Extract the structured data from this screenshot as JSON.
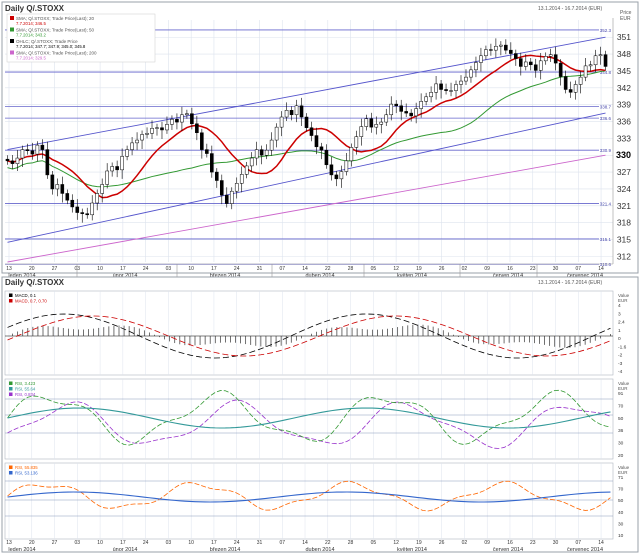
{
  "main": {
    "title": "Daily Q/.STOXX",
    "date_range": "13.1.2014 - 16.7.2014 (EUR)",
    "y_axis_title": "Price\nEUR",
    "legend": [
      {
        "text": "SMA; Q/.STOXX; Trade Price(Last); 20",
        "sub": "7.7.2014; 346.5",
        "color": "#cc0000"
      },
      {
        "text": "SMA; Q/.STOXX; Trade Price(Last); 50",
        "sub": "7.7.2014; 343.2",
        "color": "#339933"
      },
      {
        "text": "OHLC; Q/.STOXX; Trade Price",
        "sub": "7.7.2014; 347.7; 347.9; 345.0; 345.8",
        "color": "#000000"
      },
      {
        "text": "SMA; Q/.STOXX; Trade Price(Last); 200",
        "sub": "7.7.2014; 329.5",
        "color": "#cc66cc"
      }
    ],
    "price_level_labels": [
      "352.3",
      "344.8",
      "338.7",
      "336.6",
      "330.9",
      "321.4",
      "315.1",
      "310.6"
    ],
    "y_ticks": [
      351,
      348,
      345,
      342,
      339,
      336,
      333,
      330,
      327,
      324,
      321,
      318,
      315,
      312
    ],
    "x_day_ticks": [
      "13",
      "20",
      "27",
      "03",
      "10",
      "17",
      "24",
      "03",
      "10",
      "17",
      "24",
      "31",
      "07",
      "14",
      "22",
      "28",
      "05",
      "12",
      "19",
      "26",
      "02",
      "09",
      "16",
      "23",
      "30",
      "07",
      "14"
    ],
    "months": [
      "leden 2014",
      "únor 2014",
      "březen 2014",
      "duben 2014",
      "květen 2014",
      "červen 2014",
      "červenec 2014"
    ]
  },
  "sub": {
    "title": "Daily Q/.STOXX",
    "date_range": "13.1.2014 - 16.7.2014 (EUR)",
    "macd": {
      "legend": [
        {
          "text": "MACD, 0.1",
          "color": "#000000"
        },
        {
          "text": "MACD, 0.7, 0.70",
          "color": "#cc0000"
        }
      ],
      "y_title": "Value\nEUR",
      "y_ticks": [
        "4",
        "3",
        "2.4",
        "1",
        "0",
        "-1.6",
        "-2",
        "-3",
        "-4"
      ]
    },
    "rsi1": {
      "legend": [
        {
          "text": "RSI, 3.423",
          "color": "#339933"
        },
        {
          "text": "RSI, 55.64",
          "color": "#339999"
        },
        {
          "text": "RSI, 0.834",
          "color": "#9933cc"
        }
      ],
      "y_title": "Value\nEUR",
      "y_ticks": [
        "91",
        "70",
        "50",
        "36",
        "30",
        "20"
      ]
    },
    "rsi2": {
      "legend": [
        {
          "text": "RSI, 55.835",
          "color": "#ff6600"
        },
        {
          "text": "RSI, 53.136",
          "color": "#3366cc"
        }
      ],
      "y_title": "Value\nEUR",
      "y_ticks": [
        "71",
        "70",
        "50",
        "40",
        "30",
        "10"
      ]
    },
    "months": [
      "leden 2014",
      "únor 2014",
      "březen 2014",
      "duben 2014",
      "květen 2014",
      "červen 2014",
      "červenec 2014"
    ]
  },
  "colors": {
    "grid": "#dde3ee",
    "channel": "#5555cc",
    "level": "#6666cc",
    "candle_up": "#ffffff",
    "candle_down": "#000000",
    "sma20": "#cc0000",
    "sma50": "#339933",
    "sma200": "#cc66cc"
  },
  "chart_data": {
    "type": "candlestick",
    "title": "Daily Q/.STOXX",
    "ylim": [
      311,
      353
    ],
    "x_range": [
      "13.1.2014",
      "16.7.2014"
    ],
    "closes": [
      329.0,
      328.5,
      329.5,
      331.0,
      330.8,
      330.2,
      331.8,
      331.0,
      326.5,
      324.0,
      324.8,
      323.2,
      322.0,
      320.8,
      319.8,
      319.6,
      319.4,
      321.5,
      323.2,
      324.8,
      327.2,
      328.0,
      327.4,
      329.8,
      331.0,
      332.2,
      332.7,
      333.7,
      333.9,
      334.8,
      334.9,
      334.5,
      335.5,
      336.4,
      335.9,
      337.2,
      337.4,
      335.6,
      334.0,
      331.0,
      330.3,
      327.0,
      325.5,
      322.9,
      321.4,
      323.6,
      325.0,
      326.6,
      328.1,
      329.5,
      331.0,
      330.0,
      330.9,
      332.7,
      335.0,
      336.8,
      338.0,
      337.2,
      338.8,
      336.8,
      334.9,
      333.5,
      331.5,
      330.9,
      328.3,
      326.5,
      325.8,
      327.1,
      329.0,
      331.4,
      333.3,
      335.1,
      336.5,
      335.0,
      335.5,
      335.9,
      337.2,
      339.1,
      338.8,
      337.8,
      337.5,
      337.0,
      338.3,
      339.6,
      340.4,
      341.2,
      342.7,
      341.7,
      341.5,
      341.5,
      342.6,
      343.2,
      343.9,
      345.2,
      346.5,
      347.7,
      348.8,
      348.7,
      349.4,
      349.6,
      348.7,
      348.1,
      347.2,
      345.8,
      346.6,
      346.1,
      345.1,
      346.8,
      347.6,
      347.9,
      346.4,
      344.0,
      341.7,
      341.2,
      342.6,
      343.9,
      345.9,
      346.1,
      347.7,
      347.9,
      345.8
    ],
    "series": [
      {
        "name": "SMA; Q/.STOXX; Trade Price(Last); 20",
        "last": 346.5
      },
      {
        "name": "SMA; Q/.STOXX; Trade Price(Last); 50",
        "last": 343.2
      },
      {
        "name": "SMA; Q/.STOXX; Trade Price(Last); 200",
        "last": 329.5
      }
    ],
    "horizontal_levels": [
      352.3,
      344.8,
      338.7,
      336.6,
      330.9,
      321.4,
      315.1,
      310.6
    ],
    "channel_upper": [
      [
        0,
        331.0
      ],
      [
        120,
        351.0
      ]
    ],
    "channel_lower": [
      [
        0,
        314.5
      ],
      [
        120,
        337.5
      ]
    ],
    "sma200_line": [
      [
        0,
        311.0
      ],
      [
        120,
        330.0
      ]
    ],
    "last_ohlc": {
      "open": 347.7,
      "high": 347.9,
      "low": 345.0,
      "close": 345.8
    }
  }
}
